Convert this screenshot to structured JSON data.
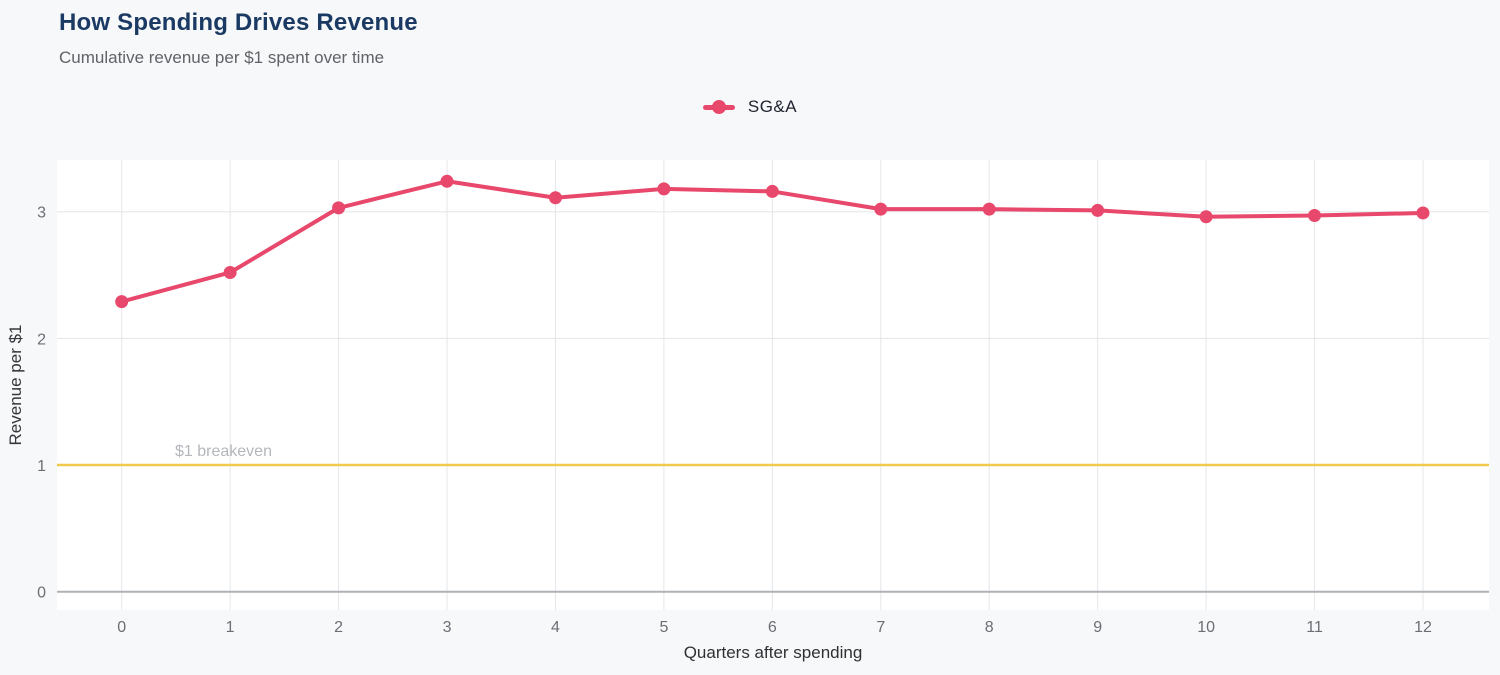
{
  "header": {
    "title": "How Spending Drives Revenue",
    "subtitle": "Cumulative revenue per $1 spent over time"
  },
  "legend": {
    "position": "top-center",
    "items": [
      {
        "label": "SG&A",
        "color": "#e8486b"
      }
    ]
  },
  "chart_data": {
    "type": "line",
    "title": "How Spending Drives Revenue",
    "subtitle": "Cumulative revenue per $1 spent over time",
    "xlabel": "Quarters after spending",
    "ylabel": "Revenue per $1",
    "x": [
      0,
      1,
      2,
      3,
      4,
      5,
      6,
      7,
      8,
      9,
      10,
      11,
      12
    ],
    "series": [
      {
        "name": "SG&A",
        "color": "#e8486b",
        "values": [
          2.29,
          2.52,
          3.03,
          3.24,
          3.11,
          3.18,
          3.16,
          3.02,
          3.02,
          3.01,
          2.96,
          2.97,
          2.99
        ]
      }
    ],
    "yticks": [
      0,
      1,
      2,
      3
    ],
    "xticks": [
      0,
      1,
      2,
      3,
      4,
      5,
      6,
      7,
      8,
      9,
      10,
      11,
      12
    ],
    "ylim": [
      -0.15,
      3.41
    ],
    "xlim": [
      -0.6,
      12.6
    ],
    "grid": true,
    "legend_position": "top-center",
    "reference_line": {
      "y": 1,
      "label": "$1 breakeven",
      "color": "#f2c94f"
    }
  },
  "colors": {
    "page_background": "#f7f8fa",
    "plot_background": "#ffffff",
    "grid": "#e4e6e8",
    "zero_line": "#aeb1b6",
    "title": "#1b3a63",
    "subtitle": "#5f6368",
    "tick_label": "#6b6f74",
    "series": "#e8486b",
    "breakeven_line": "#f2c94f",
    "breakeven_label": "#b4b7bb"
  }
}
